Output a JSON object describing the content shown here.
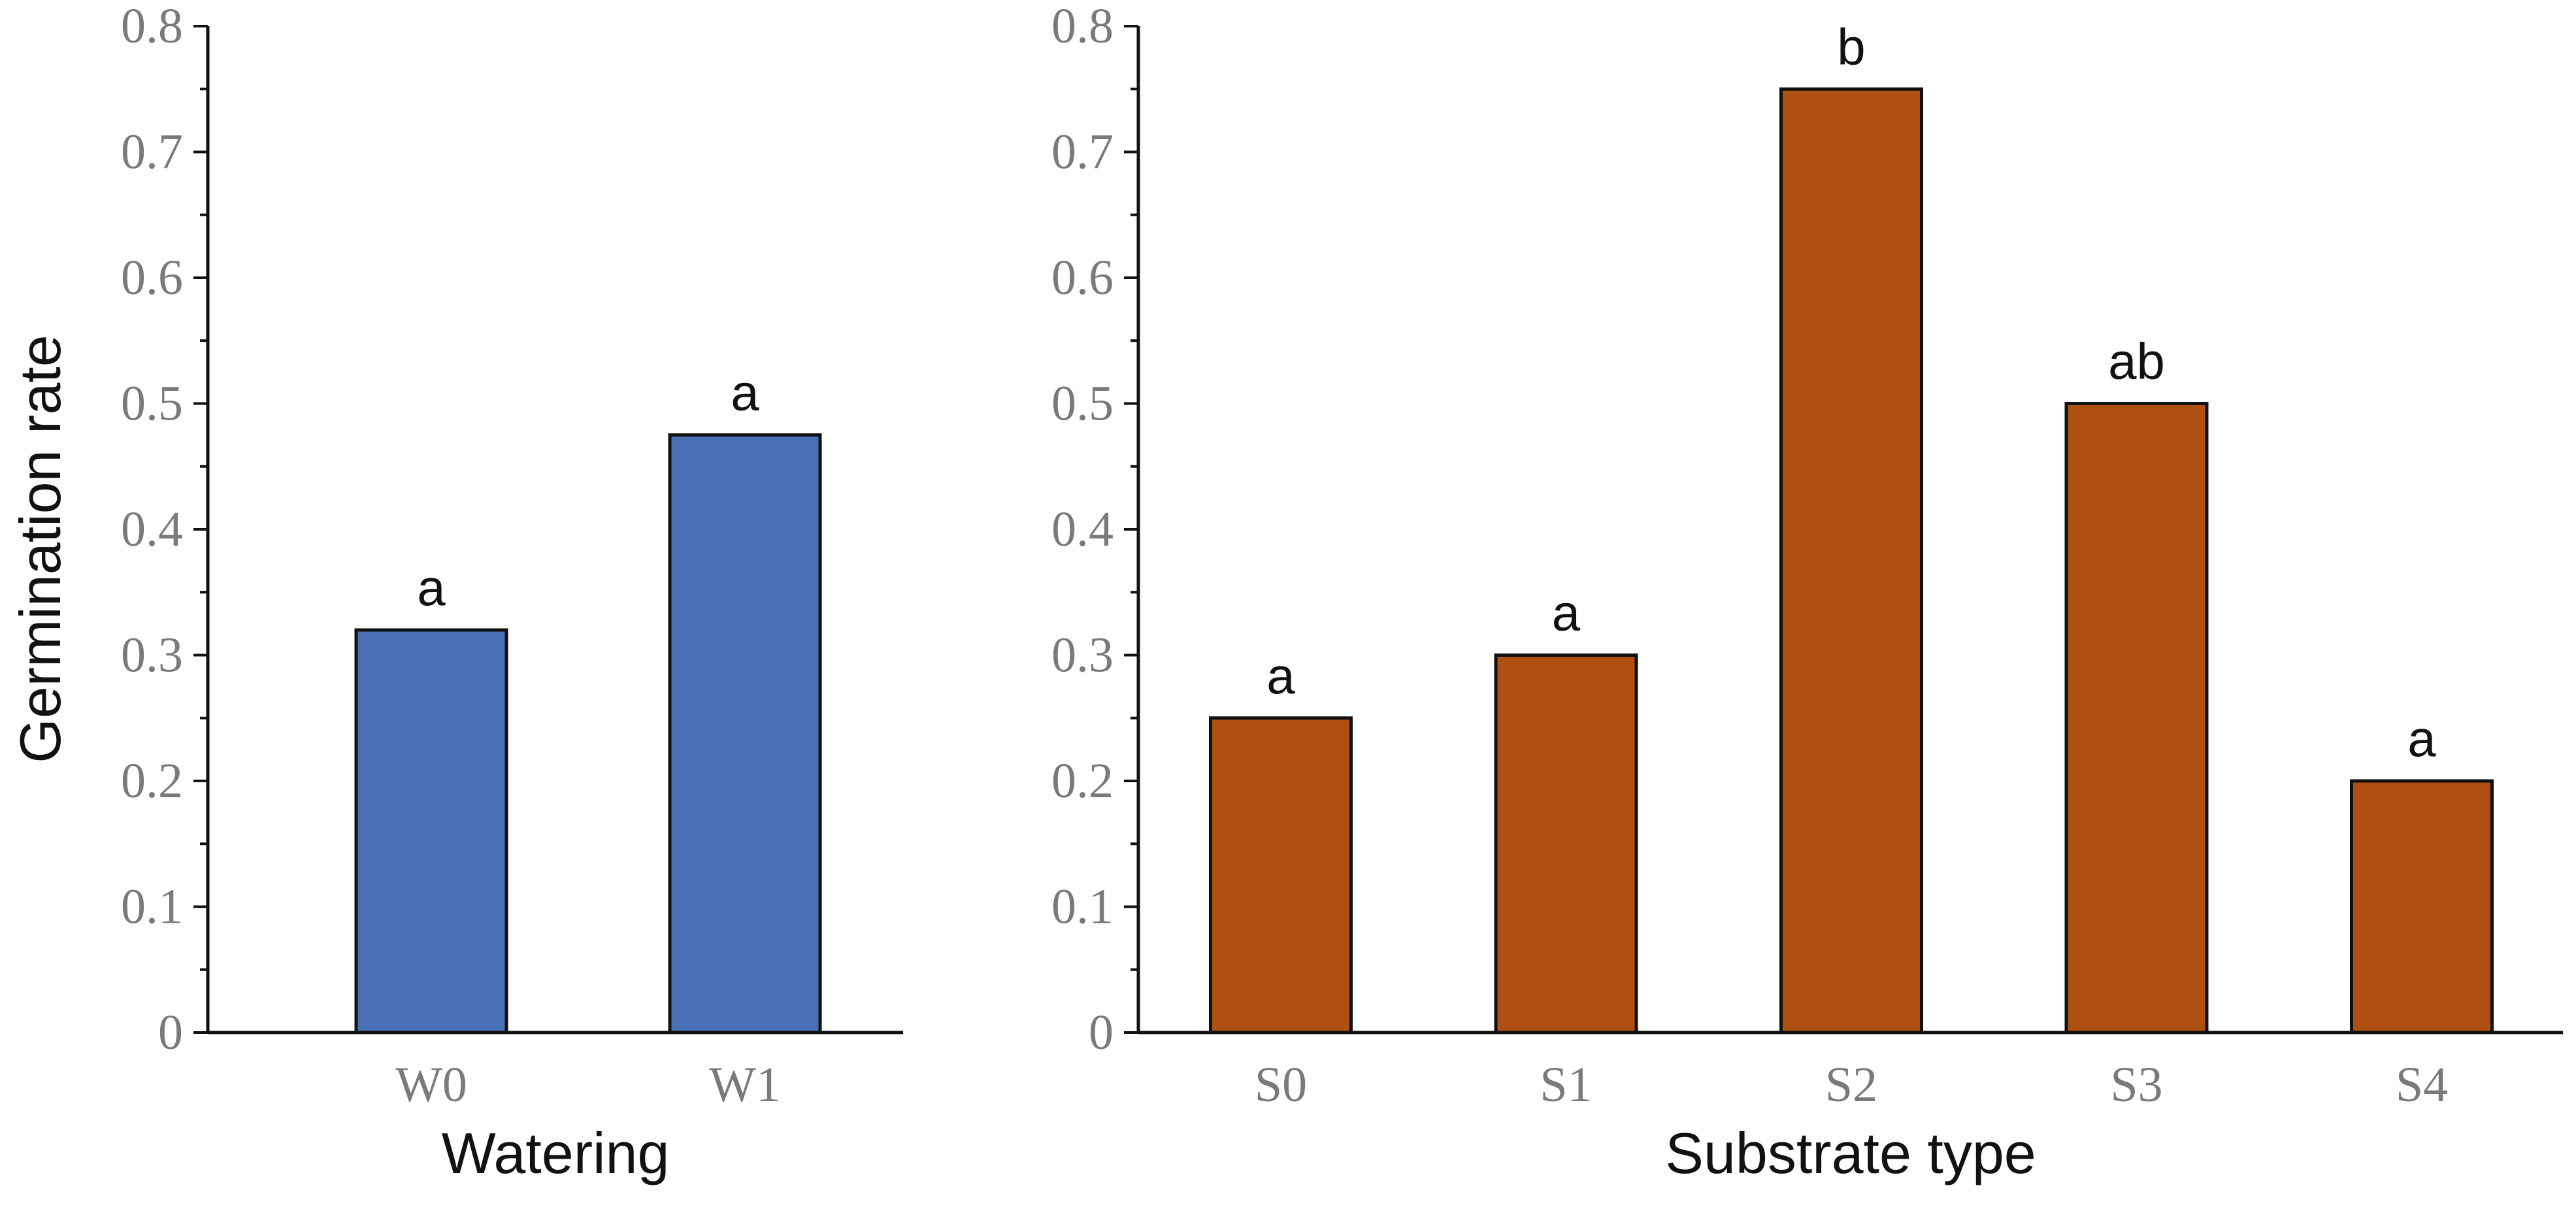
{
  "chart_data": [
    {
      "type": "bar",
      "categories": [
        "W0",
        "W1"
      ],
      "values": [
        0.32,
        0.475
      ],
      "significance_letters": [
        "a",
        "a"
      ],
      "color": "#4a6fb5",
      "xlabel": "Watering",
      "ylabel": "Germination rate",
      "ylim": [
        0,
        0.8
      ],
      "yticks": [
        "0",
        "0.1",
        "0.2",
        "0.3",
        "0.4",
        "0.5",
        "0.6",
        "0.7",
        "0.8"
      ]
    },
    {
      "type": "bar",
      "categories": [
        "S0",
        "S1",
        "S2",
        "S3",
        "S4"
      ],
      "values": [
        0.25,
        0.3,
        0.75,
        0.5,
        0.2
      ],
      "significance_letters": [
        "a",
        "a",
        "b",
        "ab",
        "a"
      ],
      "color": "#ad5011",
      "xlabel": "Substrate type",
      "ylabel": "",
      "ylim": [
        0,
        0.8
      ],
      "yticks": [
        "0",
        "0.1",
        "0.2",
        "0.3",
        "0.4",
        "0.5",
        "0.6",
        "0.7",
        "0.8"
      ]
    }
  ]
}
